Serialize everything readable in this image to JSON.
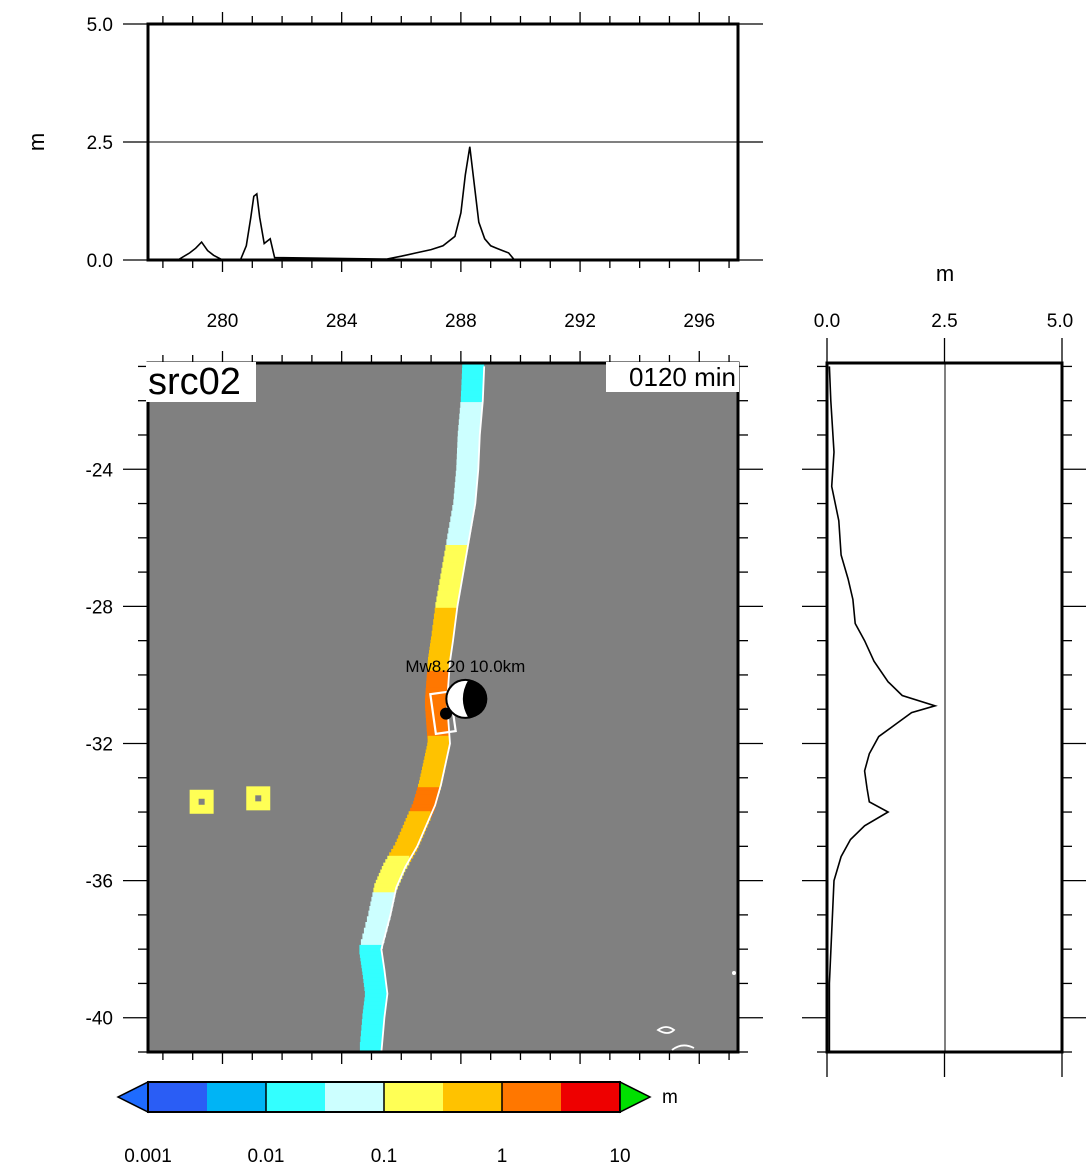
{
  "chart_data": [
    {
      "type": "line",
      "panel": "top-profile",
      "ylabel": "m",
      "ylim": [
        0,
        5
      ],
      "xlim": [
        277.5,
        297.3
      ],
      "x_ticks": [
        280,
        284,
        288,
        292,
        296
      ],
      "y_ticks": [
        "0.0",
        "2.5",
        "5.0"
      ],
      "grid": "horizontal line at 2.5",
      "series": [
        {
          "x": [
            278.5,
            278.9,
            279.1,
            279.3,
            279.5,
            279.7,
            280.0,
            280.6,
            280.8,
            280.95,
            281.05,
            281.15,
            281.25,
            281.4,
            281.6,
            281.75,
            285.5,
            286.0,
            286.5,
            287.0,
            287.4,
            287.8,
            288.0,
            288.15,
            288.3,
            288.45,
            288.6,
            288.8,
            289.0,
            289.2,
            289.4,
            289.6,
            289.8
          ],
          "y": [
            0.0,
            0.15,
            0.25,
            0.38,
            0.2,
            0.1,
            0.0,
            0.0,
            0.3,
            0.9,
            1.35,
            1.4,
            0.9,
            0.35,
            0.45,
            0.05,
            0.02,
            0.08,
            0.15,
            0.22,
            0.3,
            0.5,
            1.0,
            1.8,
            2.4,
            1.6,
            0.8,
            0.45,
            0.3,
            0.25,
            0.2,
            0.15,
            0.0
          ]
        }
      ]
    },
    {
      "type": "heatmap",
      "panel": "map",
      "xlim": [
        277.5,
        297.3
      ],
      "ylim": [
        -41.0,
        -20.9
      ],
      "x_ticks": [
        280,
        284,
        288,
        292,
        296
      ],
      "y_ticks": [
        "-24",
        "-28",
        "-32",
        "-36",
        "-40"
      ],
      "colorbar": {
        "unit": "m",
        "ticks": [
          "0.001",
          "0.01",
          "0.1",
          "1",
          "10"
        ],
        "stops": [
          "#2a5df5",
          "#00b4f5",
          "#33ffff",
          "#ccffff",
          "#ffff55",
          "#ffc200",
          "#ff7700",
          "#ee0000"
        ],
        "under_color": "#1e6bff",
        "over_color": "#00e000"
      },
      "annotations": [
        "src02",
        "0120 min",
        "Mw8.20  10.0km"
      ],
      "epicenter": [
        288.15,
        -30.7
      ],
      "fault_center": [
        287.4,
        -31.1
      ]
    },
    {
      "type": "line",
      "panel": "right-profile",
      "xlabel": "m",
      "xlim": [
        0,
        5
      ],
      "ylim": [
        -41.0,
        -20.9
      ],
      "x_ticks": [
        "0.0",
        "2.5",
        "5.0"
      ],
      "grid": "vertical line at 2.5",
      "series": [
        {
          "y": [
            -21.0,
            -22.0,
            -23.5,
            -24.5,
            -25.5,
            -26.5,
            -27.2,
            -27.8,
            -28.5,
            -29.0,
            -29.6,
            -30.2,
            -30.6,
            -30.9,
            -31.1,
            -31.4,
            -31.8,
            -32.3,
            -32.8,
            -33.3,
            -33.7,
            -34.0,
            -34.4,
            -34.8,
            -35.3,
            -36.0,
            -37.5,
            -39.0,
            -41.0
          ],
          "x": [
            0.05,
            0.08,
            0.15,
            0.1,
            0.25,
            0.3,
            0.45,
            0.55,
            0.6,
            0.8,
            1.0,
            1.3,
            1.6,
            2.3,
            1.8,
            1.5,
            1.1,
            0.9,
            0.8,
            0.85,
            0.9,
            1.3,
            0.8,
            0.5,
            0.3,
            0.15,
            0.1,
            0.05,
            0.05
          ]
        }
      ]
    }
  ]
}
